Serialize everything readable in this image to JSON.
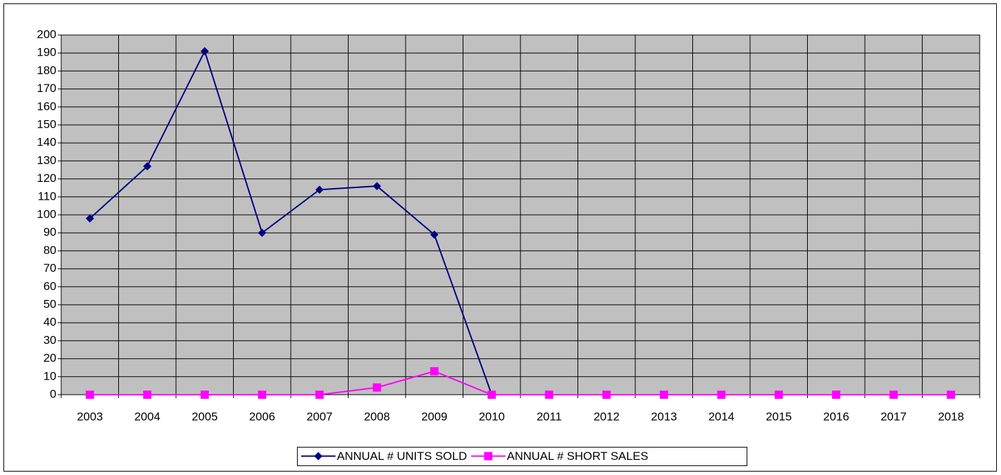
{
  "chart_data": {
    "type": "line",
    "categories": [
      "2003",
      "2004",
      "2005",
      "2006",
      "2007",
      "2008",
      "2009",
      "2010",
      "2011",
      "2012",
      "2013",
      "2014",
      "2015",
      "2016",
      "2017",
      "2018"
    ],
    "series": [
      {
        "name": "ANNUAL # UNITS SOLD",
        "color": "#000080",
        "marker": "diamond",
        "values": [
          98,
          127,
          191,
          90,
          114,
          116,
          89,
          0,
          0,
          0,
          0,
          0,
          0,
          0,
          0,
          0
        ]
      },
      {
        "name": "ANNUAL # SHORT SALES",
        "color": "#ff00ff",
        "marker": "square",
        "values": [
          0,
          0,
          0,
          0,
          0,
          4,
          13,
          0,
          0,
          0,
          0,
          0,
          0,
          0,
          0,
          0
        ]
      }
    ],
    "ylim": [
      0,
      200
    ],
    "yticks": [
      0,
      10,
      20,
      30,
      40,
      50,
      60,
      70,
      80,
      90,
      100,
      110,
      120,
      130,
      140,
      150,
      160,
      170,
      180,
      190,
      200
    ],
    "grid": true,
    "plot_background": "#c0c0c0",
    "legend": "bottom"
  }
}
